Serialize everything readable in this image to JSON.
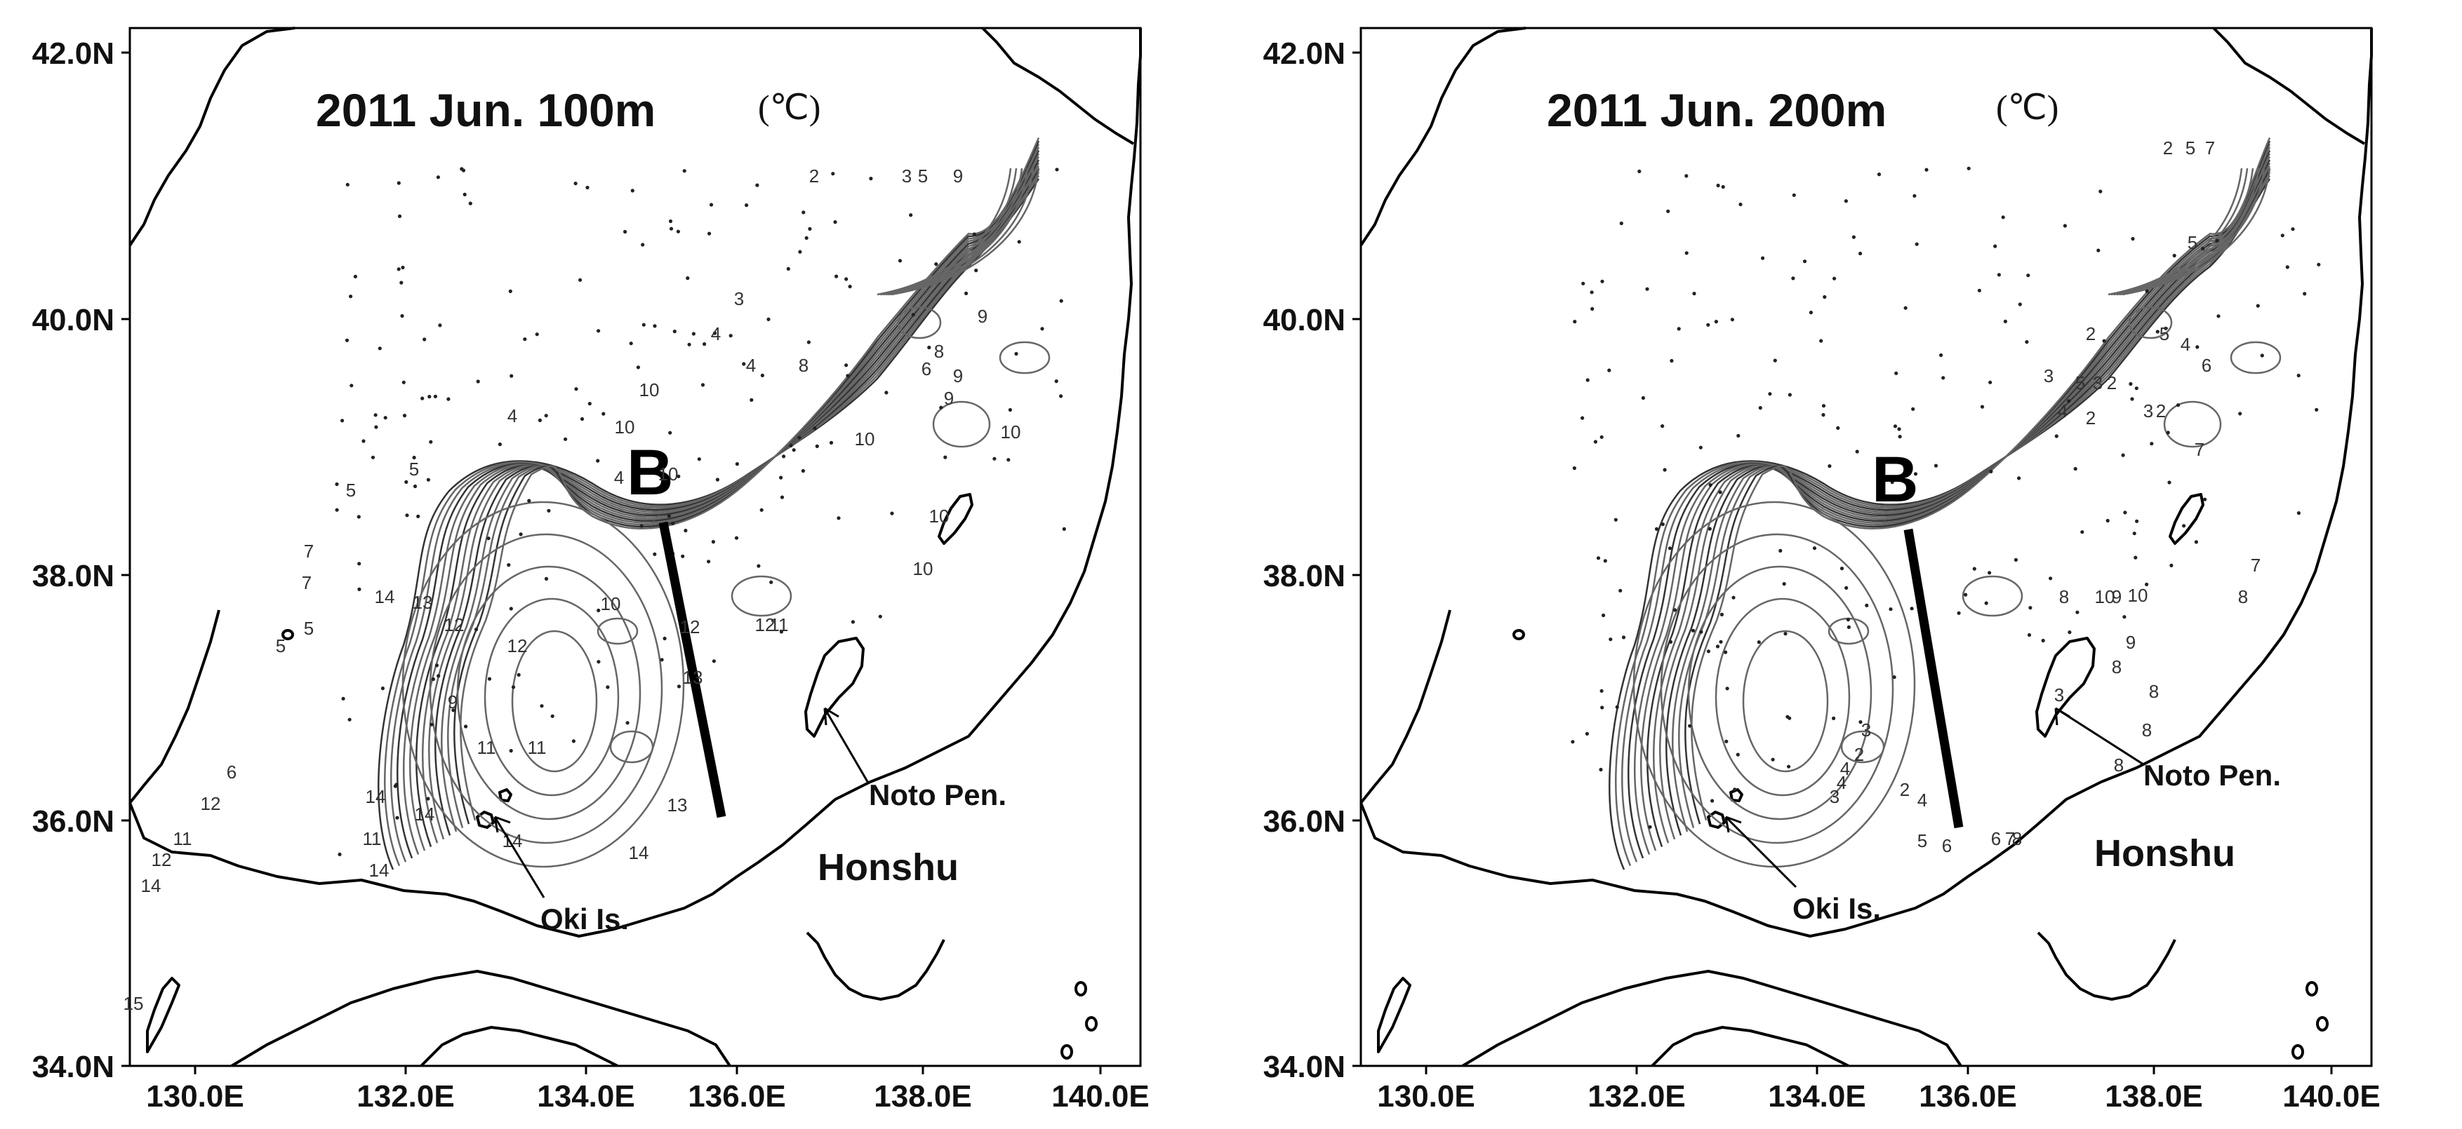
{
  "panels": [
    {
      "title": "2011   Jun.   100m",
      "unit": "(℃)",
      "lat_labels": [
        "42.0N",
        "40.0N",
        "38.0N",
        "36.0N",
        "34.0N"
      ],
      "lon_labels": [
        "130.0E",
        "132.0E",
        "134.0E",
        "136.0E",
        "138.0E",
        "140.0E"
      ],
      "section_label": "B",
      "places": {
        "oki": "Oki Is.",
        "noto": "Noto Pen.",
        "honshu": "Honshu"
      },
      "contour_labels": [
        {
          "t": "2"
        },
        {
          "t": "3"
        },
        {
          "t": "5"
        },
        {
          "t": "9"
        },
        {
          "t": "3"
        },
        {
          "t": "9"
        },
        {
          "t": "4"
        },
        {
          "t": "8"
        },
        {
          "t": "4"
        },
        {
          "t": "6"
        },
        {
          "t": "8"
        },
        {
          "t": "9"
        },
        {
          "t": "10"
        },
        {
          "t": "10"
        },
        {
          "t": "10"
        },
        {
          "t": "9"
        },
        {
          "t": "4"
        },
        {
          "t": "4"
        },
        {
          "t": "10"
        },
        {
          "t": "10"
        },
        {
          "t": "5"
        },
        {
          "t": "5"
        },
        {
          "t": "7"
        },
        {
          "t": "7"
        },
        {
          "t": "5"
        },
        {
          "t": "5"
        },
        {
          "t": "14"
        },
        {
          "t": "13"
        },
        {
          "t": "12"
        },
        {
          "t": "12"
        },
        {
          "t": "9"
        },
        {
          "t": "11"
        },
        {
          "t": "11"
        },
        {
          "t": "10"
        },
        {
          "t": "12"
        },
        {
          "t": "12"
        },
        {
          "t": "11"
        },
        {
          "t": "13"
        },
        {
          "t": "10"
        },
        {
          "t": "10"
        },
        {
          "t": "6"
        },
        {
          "t": "12"
        },
        {
          "t": "11"
        },
        {
          "t": "12"
        },
        {
          "t": "14"
        },
        {
          "t": "14"
        },
        {
          "t": "14"
        },
        {
          "t": "11"
        },
        {
          "t": "14"
        },
        {
          "t": "14"
        },
        {
          "t": "13"
        },
        {
          "t": "14"
        },
        {
          "t": "15"
        }
      ]
    },
    {
      "title": "2011   Jun.   200m",
      "unit": "(℃)",
      "lat_labels": [
        "42.0N",
        "40.0N",
        "38.0N",
        "36.0N",
        "34.0N"
      ],
      "lon_labels": [
        "130.0E",
        "132.0E",
        "134.0E",
        "136.0E",
        "138.0E",
        "140.0E"
      ],
      "section_label": "B",
      "places": {
        "oki": "Oki Is.",
        "noto": "Noto Pen.",
        "honshu": "Honshu"
      },
      "contour_labels": [
        {
          "t": "2"
        },
        {
          "t": "5"
        },
        {
          "t": "7"
        },
        {
          "t": "5"
        },
        {
          "t": "2"
        },
        {
          "t": "5"
        },
        {
          "t": "4"
        },
        {
          "t": "6"
        },
        {
          "t": "3"
        },
        {
          "t": "5"
        },
        {
          "t": "3"
        },
        {
          "t": "2"
        },
        {
          "t": "4"
        },
        {
          "t": "3"
        },
        {
          "t": "2"
        },
        {
          "t": "2"
        },
        {
          "t": "7"
        },
        {
          "t": "10"
        },
        {
          "t": "10"
        },
        {
          "t": "9"
        },
        {
          "t": "8"
        },
        {
          "t": "8"
        },
        {
          "t": "7"
        },
        {
          "t": "9"
        },
        {
          "t": "8"
        },
        {
          "t": "8"
        },
        {
          "t": "3"
        },
        {
          "t": "3"
        },
        {
          "t": "8"
        },
        {
          "t": "8"
        },
        {
          "t": "2"
        },
        {
          "t": "4"
        },
        {
          "t": "4"
        },
        {
          "t": "3"
        },
        {
          "t": "2"
        },
        {
          "t": "4"
        },
        {
          "t": "5"
        },
        {
          "t": "6"
        },
        {
          "t": "6"
        },
        {
          "t": "7"
        },
        {
          "t": "8"
        }
      ]
    }
  ]
}
